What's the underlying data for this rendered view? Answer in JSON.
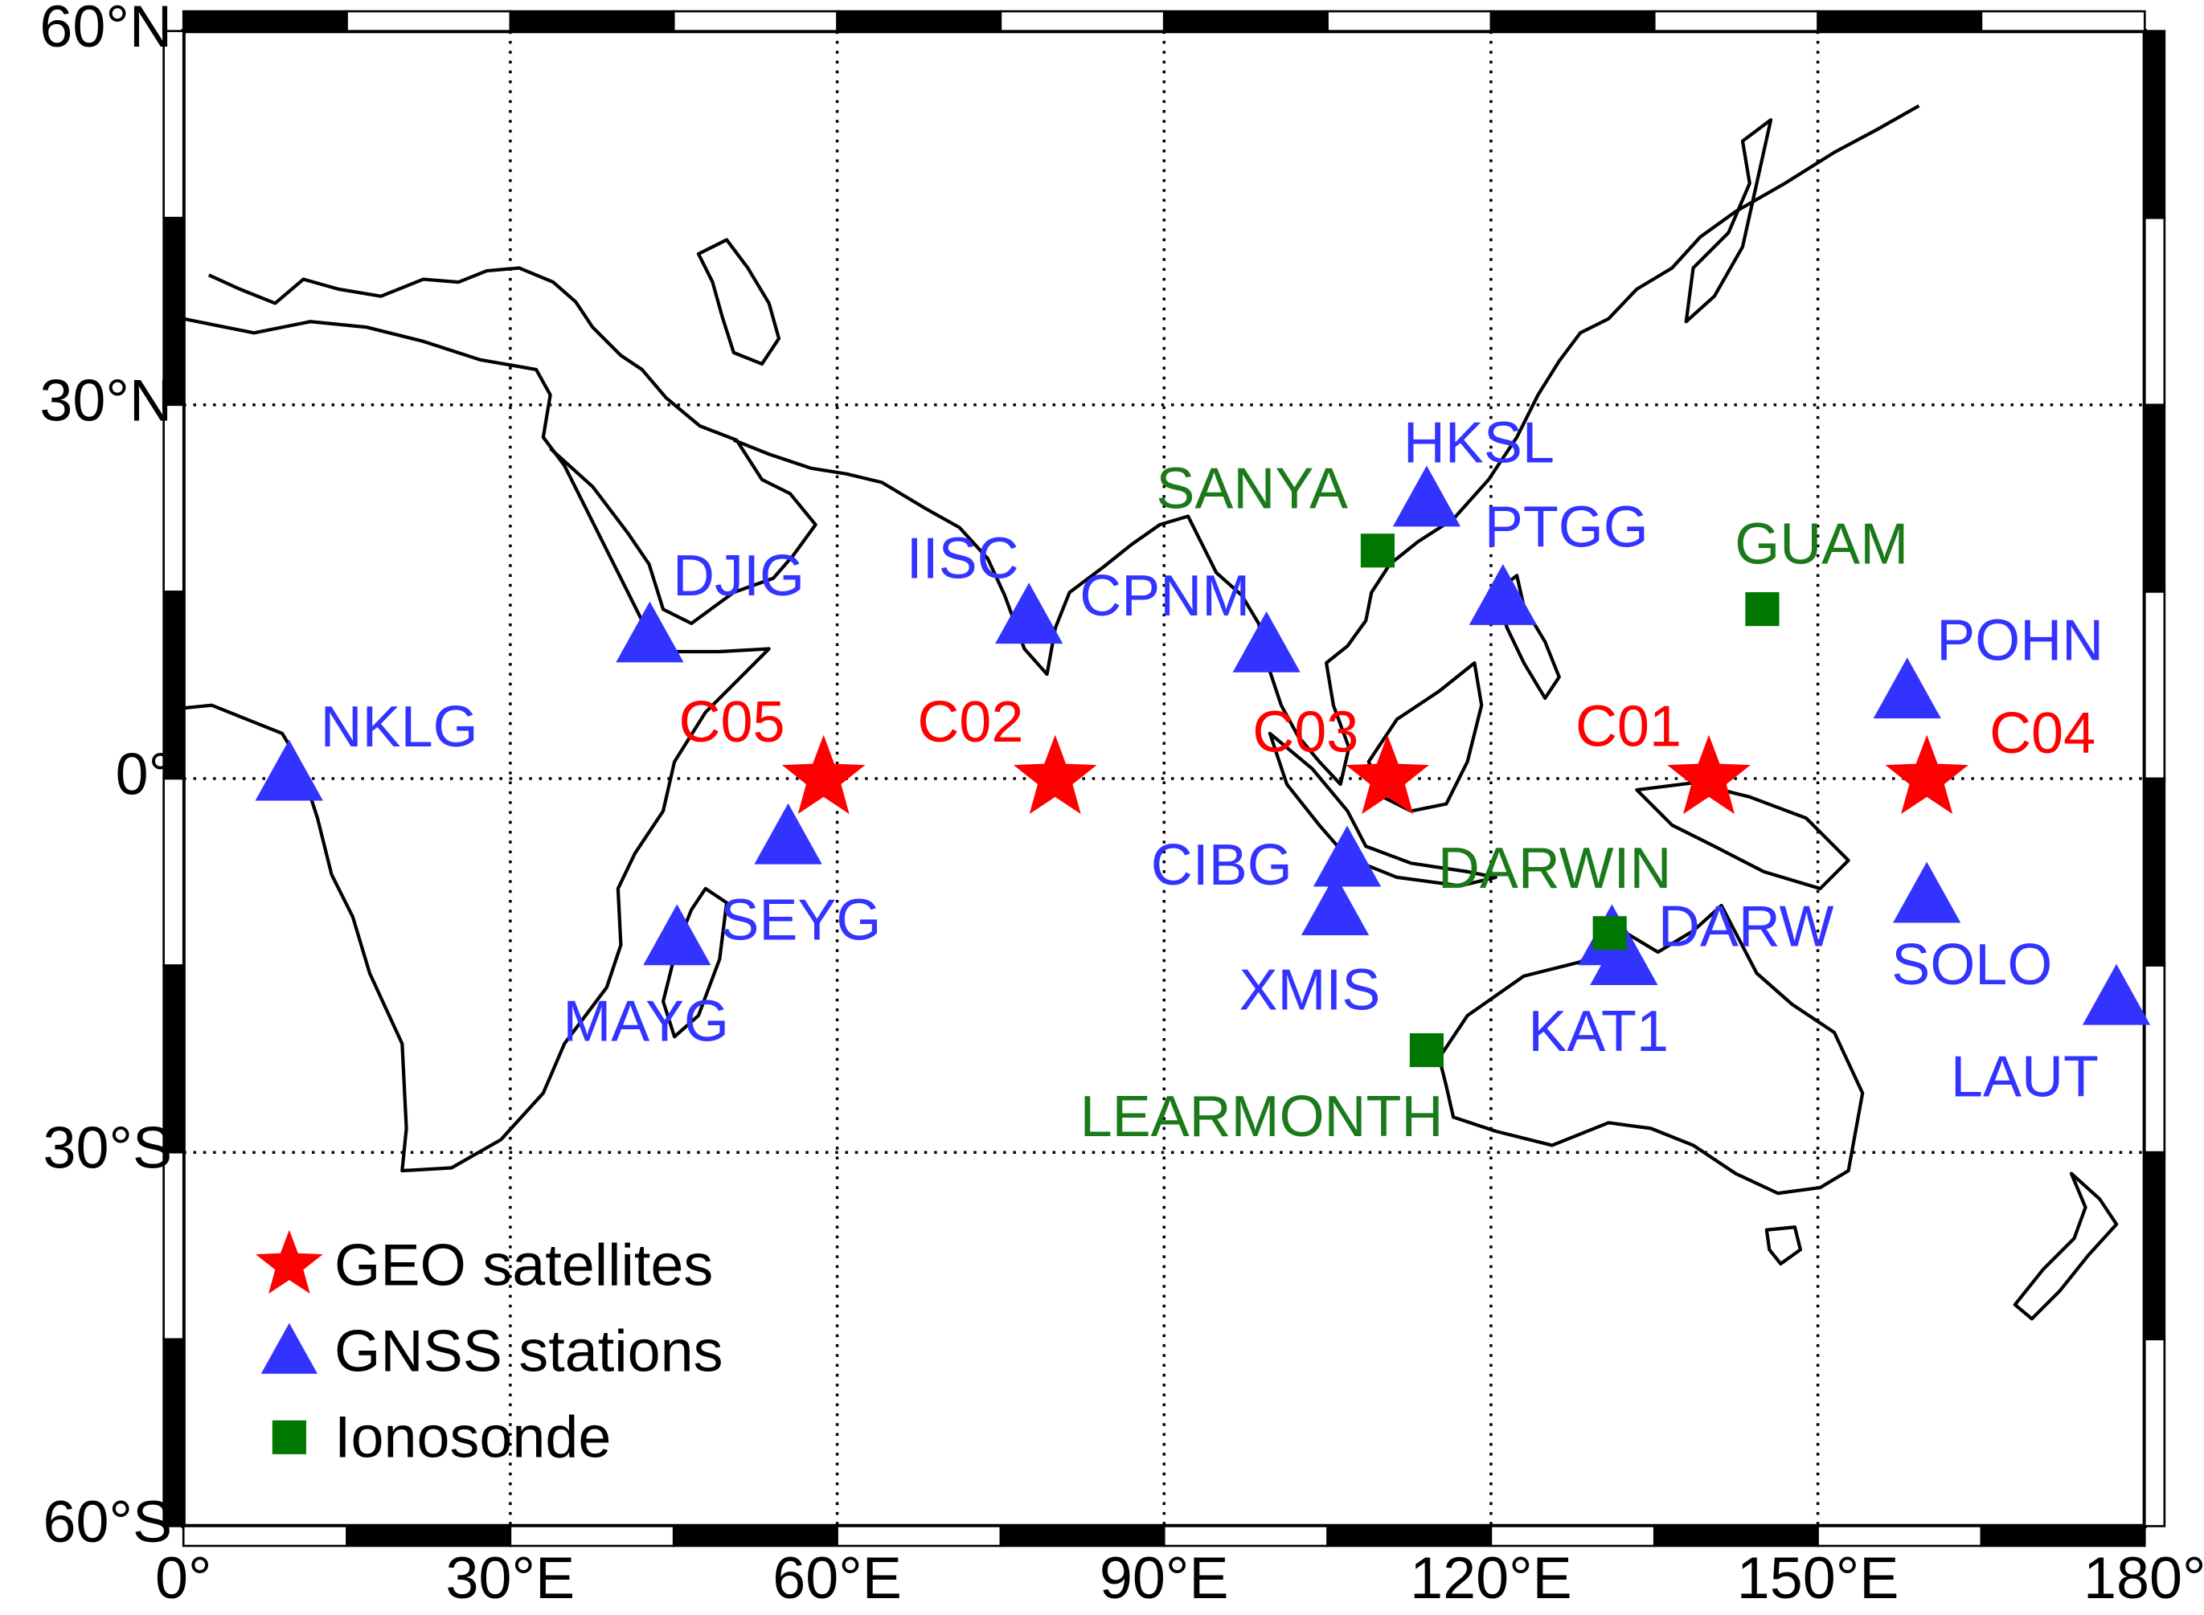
{
  "chart_data": {
    "type": "map",
    "xlim": [
      0,
      180
    ],
    "ylim": [
      -60,
      60
    ],
    "xticks": [
      {
        "value": 0,
        "label": "0°"
      },
      {
        "value": 30,
        "label": "30°E"
      },
      {
        "value": 60,
        "label": "60°E"
      },
      {
        "value": 90,
        "label": "90°E"
      },
      {
        "value": 120,
        "label": "120°E"
      },
      {
        "value": 150,
        "label": "150°E"
      },
      {
        "value": 180,
        "label": "180°"
      }
    ],
    "yticks": [
      {
        "value": -60,
        "label": "60°S"
      },
      {
        "value": -30,
        "label": "30°S"
      },
      {
        "value": 0,
        "label": "0°"
      },
      {
        "value": 30,
        "label": "30°N"
      },
      {
        "value": 60,
        "label": "60°N"
      }
    ],
    "grid": true,
    "legend": "lower left",
    "series": [
      {
        "name": "GEO satellites",
        "color": "#ff0000",
        "marker": "star",
        "labels": [
          "C05",
          "C02",
          "C03",
          "C01",
          "C04"
        ],
        "x": [
          58.75,
          80,
          110.5,
          140,
          160
        ],
        "y": [
          0,
          0,
          0,
          0,
          0
        ]
      },
      {
        "name": "GNSS stations",
        "color": "#3333ff",
        "marker": "triangle",
        "labels": [
          "NKLG",
          "DJIG",
          "IISC",
          "CPNM",
          "HKSL",
          "PTGG",
          "POHN",
          "SOLO",
          "LAUT",
          "CIBG",
          "XMIS",
          "KAT1",
          "DARW",
          "SEYG",
          "MAYG"
        ],
        "x": [
          9.7,
          42.8,
          77.6,
          99.4,
          114.1,
          121.1,
          158.2,
          160,
          177.4,
          106.8,
          105.7,
          132.2,
          131.1,
          55.5,
          45.3
        ],
        "y": [
          0.4,
          11.5,
          13.0,
          10.7,
          22.4,
          14.5,
          7.0,
          -9.4,
          -17.6,
          -6.5,
          -10.4,
          -14.4,
          -12.8,
          -4.7,
          -12.8
        ]
      },
      {
        "name": "Ionosonde",
        "color": "#007700",
        "marker": "square",
        "labels": [
          "SANYA",
          "GUAM",
          "DARWIN",
          "LEARMONTH"
        ],
        "x": [
          109.6,
          144.9,
          130.9,
          114.1
        ],
        "y": [
          18.3,
          13.6,
          -12.4,
          -21.8
        ]
      }
    ]
  }
}
